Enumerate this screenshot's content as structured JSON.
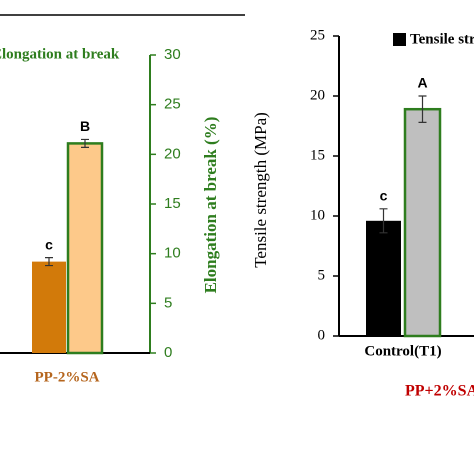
{
  "chart_data": [
    {
      "type": "bar",
      "ylabel": "Elongation at break (%)",
      "categories": [
        "PP-2%SA"
      ],
      "category_color": "#b5651d",
      "axis_color": "#2e7d1e",
      "series": [
        {
          "color": "#d27a0a",
          "values": [
            9.2
          ],
          "errors": [
            0.4
          ],
          "letters": [
            "c"
          ]
        },
        {
          "name": "Elongation at break",
          "color": "#fdc98a",
          "edge": "#2e7d1e",
          "values": [
            21.1
          ],
          "errors": [
            0.4
          ],
          "letters": [
            "B"
          ]
        }
      ],
      "ylim": [
        0,
        30
      ],
      "yticks": [
        0,
        5,
        10,
        15,
        20,
        25,
        30
      ]
    },
    {
      "type": "bar",
      "ylabel": "Tensile strength (MPa)",
      "categories": [
        "Control(T1)"
      ],
      "category_color": "#000000",
      "axis_color": "#000000",
      "footer": "PP+2%SA",
      "footer_color": "#c00000",
      "series": [
        {
          "name": "Tensile strength",
          "color": "#000000",
          "values": [
            9.6
          ],
          "errors": [
            1.0
          ],
          "letters": [
            "c"
          ]
        },
        {
          "color": "#bfbfbf",
          "edge": "#2e7d1e",
          "values": [
            18.9
          ],
          "errors": [
            1.1
          ],
          "letters": [
            "A"
          ]
        }
      ],
      "ylim": [
        0,
        25
      ],
      "yticks": [
        0,
        5,
        10,
        15,
        20,
        25
      ]
    }
  ]
}
